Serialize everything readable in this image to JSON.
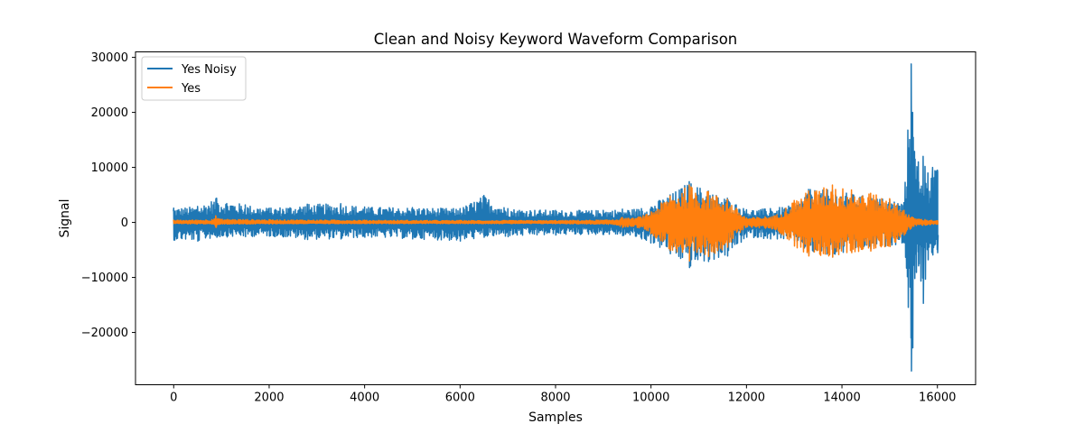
{
  "chart_data": {
    "type": "line",
    "title": "Clean and Noisy Keyword Waveform Comparison",
    "xlabel": "Samples",
    "ylabel": "Signal",
    "xlim": [
      -800,
      16800
    ],
    "ylim": [
      -29500,
      31000
    ],
    "x_ticks": [
      0,
      2000,
      4000,
      6000,
      8000,
      10000,
      12000,
      14000,
      16000
    ],
    "x_tick_labels": [
      "0",
      "2000",
      "4000",
      "6000",
      "8000",
      "10000",
      "12000",
      "14000",
      "16000"
    ],
    "y_ticks": [
      -20000,
      -10000,
      0,
      10000,
      20000,
      30000
    ],
    "y_tick_labels": [
      "−20000",
      "−10000",
      "0",
      "10000",
      "20000",
      "30000"
    ],
    "grid": false,
    "legend_position": "upper-left",
    "series": [
      {
        "name": "Yes Noisy",
        "color": "#1f77b4",
        "x": [
          0,
          500,
          900,
          1500,
          2000,
          2800,
          3500,
          4000,
          5000,
          6000,
          6500,
          7000,
          8000,
          9000,
          9400,
          9800,
          10400,
          10800,
          11200,
          11600,
          12000,
          12500,
          13000,
          13300,
          13800,
          14200,
          14600,
          15000,
          15300,
          15450,
          15480,
          15520,
          15600,
          15700,
          15800,
          15900,
          16000
        ],
        "max": [
          2600,
          2900,
          4400,
          3200,
          2600,
          3300,
          3400,
          2800,
          2700,
          2500,
          4900,
          2500,
          2200,
          2200,
          2400,
          2500,
          5000,
          7400,
          5700,
          4400,
          2300,
          2500,
          3100,
          6000,
          5900,
          5200,
          4700,
          4200,
          3600,
          28800,
          20000,
          12900,
          11000,
          12000,
          9000,
          10000,
          9500
        ],
        "min": [
          -3200,
          -3400,
          -2700,
          -2600,
          -2500,
          -3100,
          -3000,
          -2700,
          -3000,
          -3400,
          -2700,
          -2600,
          -2300,
          -2200,
          -2400,
          -3000,
          -5700,
          -8200,
          -7100,
          -6100,
          -2700,
          -3000,
          -3300,
          -5700,
          -6300,
          -5300,
          -4800,
          -4300,
          -3700,
          -27000,
          -22800,
          -10200,
          -7900,
          -14700,
          -6800,
          -5900,
          -5500
        ]
      },
      {
        "name": "Yes",
        "color": "#ff7f0e",
        "x": [
          0,
          800,
          880,
          950,
          2000,
          4000,
          6000,
          8000,
          9200,
          9400,
          9600,
          9900,
          10400,
          10800,
          11200,
          11600,
          12000,
          12600,
          13000,
          13300,
          13800,
          14200,
          14600,
          15000,
          15300,
          15500,
          16000
        ],
        "max": [
          400,
          500,
          1200,
          600,
          500,
          400,
          350,
          350,
          450,
          900,
          700,
          1400,
          4800,
          6800,
          5600,
          4200,
          800,
          1200,
          4000,
          5700,
          6800,
          5900,
          5300,
          4300,
          2200,
          800,
          300
        ],
        "min": [
          -200,
          -300,
          -900,
          -300,
          -250,
          -200,
          -200,
          -200,
          -350,
          -900,
          -700,
          -1400,
          -5100,
          -7000,
          -6200,
          -4500,
          -800,
          -1300,
          -4300,
          -6100,
          -6300,
          -5500,
          -5200,
          -4400,
          -2300,
          -700,
          -300
        ]
      }
    ]
  }
}
